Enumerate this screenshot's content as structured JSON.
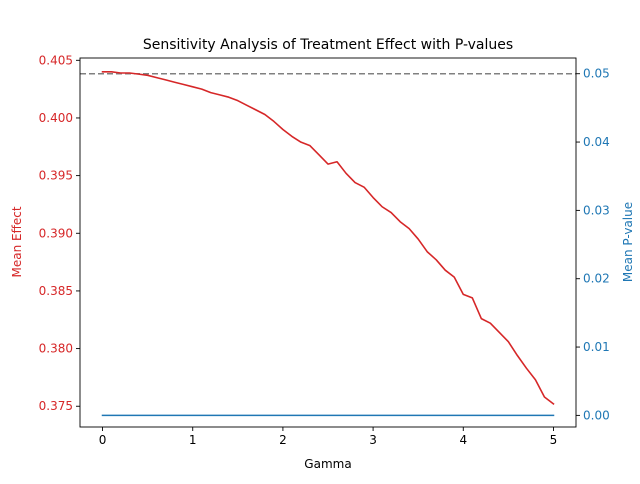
{
  "chart_data": {
    "type": "line",
    "title": "Sensitivity Analysis of Treatment Effect with P-values",
    "xlabel": "Gamma",
    "ylabel_left": "Mean Effect",
    "ylabel_right": "Mean P-value",
    "xlim": [
      -0.25,
      5.25
    ],
    "ylim_left": [
      0.3732,
      0.4052
    ],
    "ylim_right": [
      -0.0017,
      0.0523
    ],
    "x_ticks": [
      0,
      1,
      2,
      3,
      4,
      5
    ],
    "x_tick_labels": [
      "0",
      "1",
      "2",
      "3",
      "4",
      "5"
    ],
    "left_ticks": [
      0.375,
      0.38,
      0.385,
      0.39,
      0.395,
      0.4,
      0.405
    ],
    "left_tick_labels": [
      "0.375",
      "0.380",
      "0.385",
      "0.390",
      "0.395",
      "0.400",
      "0.405"
    ],
    "right_ticks": [
      0.0,
      0.01,
      0.02,
      0.03,
      0.04,
      0.05
    ],
    "right_tick_labels": [
      "0.00",
      "0.01",
      "0.02",
      "0.03",
      "0.04",
      "0.05"
    ],
    "grid": false,
    "legend": "none",
    "reference_line": {
      "axis": "right",
      "value": 0.05,
      "style": "dashed",
      "color": "#808080"
    },
    "series": [
      {
        "axis": "left",
        "color": "#d62728",
        "x": [
          0.0,
          0.1,
          0.2,
          0.3,
          0.4,
          0.5,
          0.6,
          0.7,
          0.8,
          0.9,
          1.0,
          1.1,
          1.2,
          1.3,
          1.4,
          1.5,
          1.6,
          1.7,
          1.8,
          1.9,
          2.0,
          2.1,
          2.2,
          2.3,
          2.4,
          2.5,
          2.6,
          2.7,
          2.8,
          2.9,
          3.0,
          3.1,
          3.2,
          3.3,
          3.4,
          3.5,
          3.6,
          3.7,
          3.8,
          3.9,
          4.0,
          4.1,
          4.2,
          4.3,
          4.4,
          4.5,
          4.6,
          4.7,
          4.8,
          4.9,
          5.0
        ],
        "values": [
          0.404,
          0.404,
          0.4039,
          0.4039,
          0.4038,
          0.4037,
          0.4035,
          0.4033,
          0.4031,
          0.4029,
          0.4027,
          0.4025,
          0.4022,
          0.402,
          0.4018,
          0.4015,
          0.4011,
          0.4007,
          0.4003,
          0.3997,
          0.399,
          0.3984,
          0.3979,
          0.3976,
          0.3968,
          0.396,
          0.3962,
          0.3952,
          0.3944,
          0.394,
          0.3931,
          0.3923,
          0.3918,
          0.391,
          0.3904,
          0.3895,
          0.3884,
          0.3877,
          0.3868,
          0.3862,
          0.3847,
          0.3844,
          0.3826,
          0.3822,
          0.3814,
          0.3806,
          0.3794,
          0.3783,
          0.3773,
          0.3758,
          0.3752
        ]
      },
      {
        "axis": "right",
        "color": "#1f77b4",
        "x": [
          0.0,
          5.0
        ],
        "values": [
          0.0,
          0.0
        ]
      }
    ]
  }
}
